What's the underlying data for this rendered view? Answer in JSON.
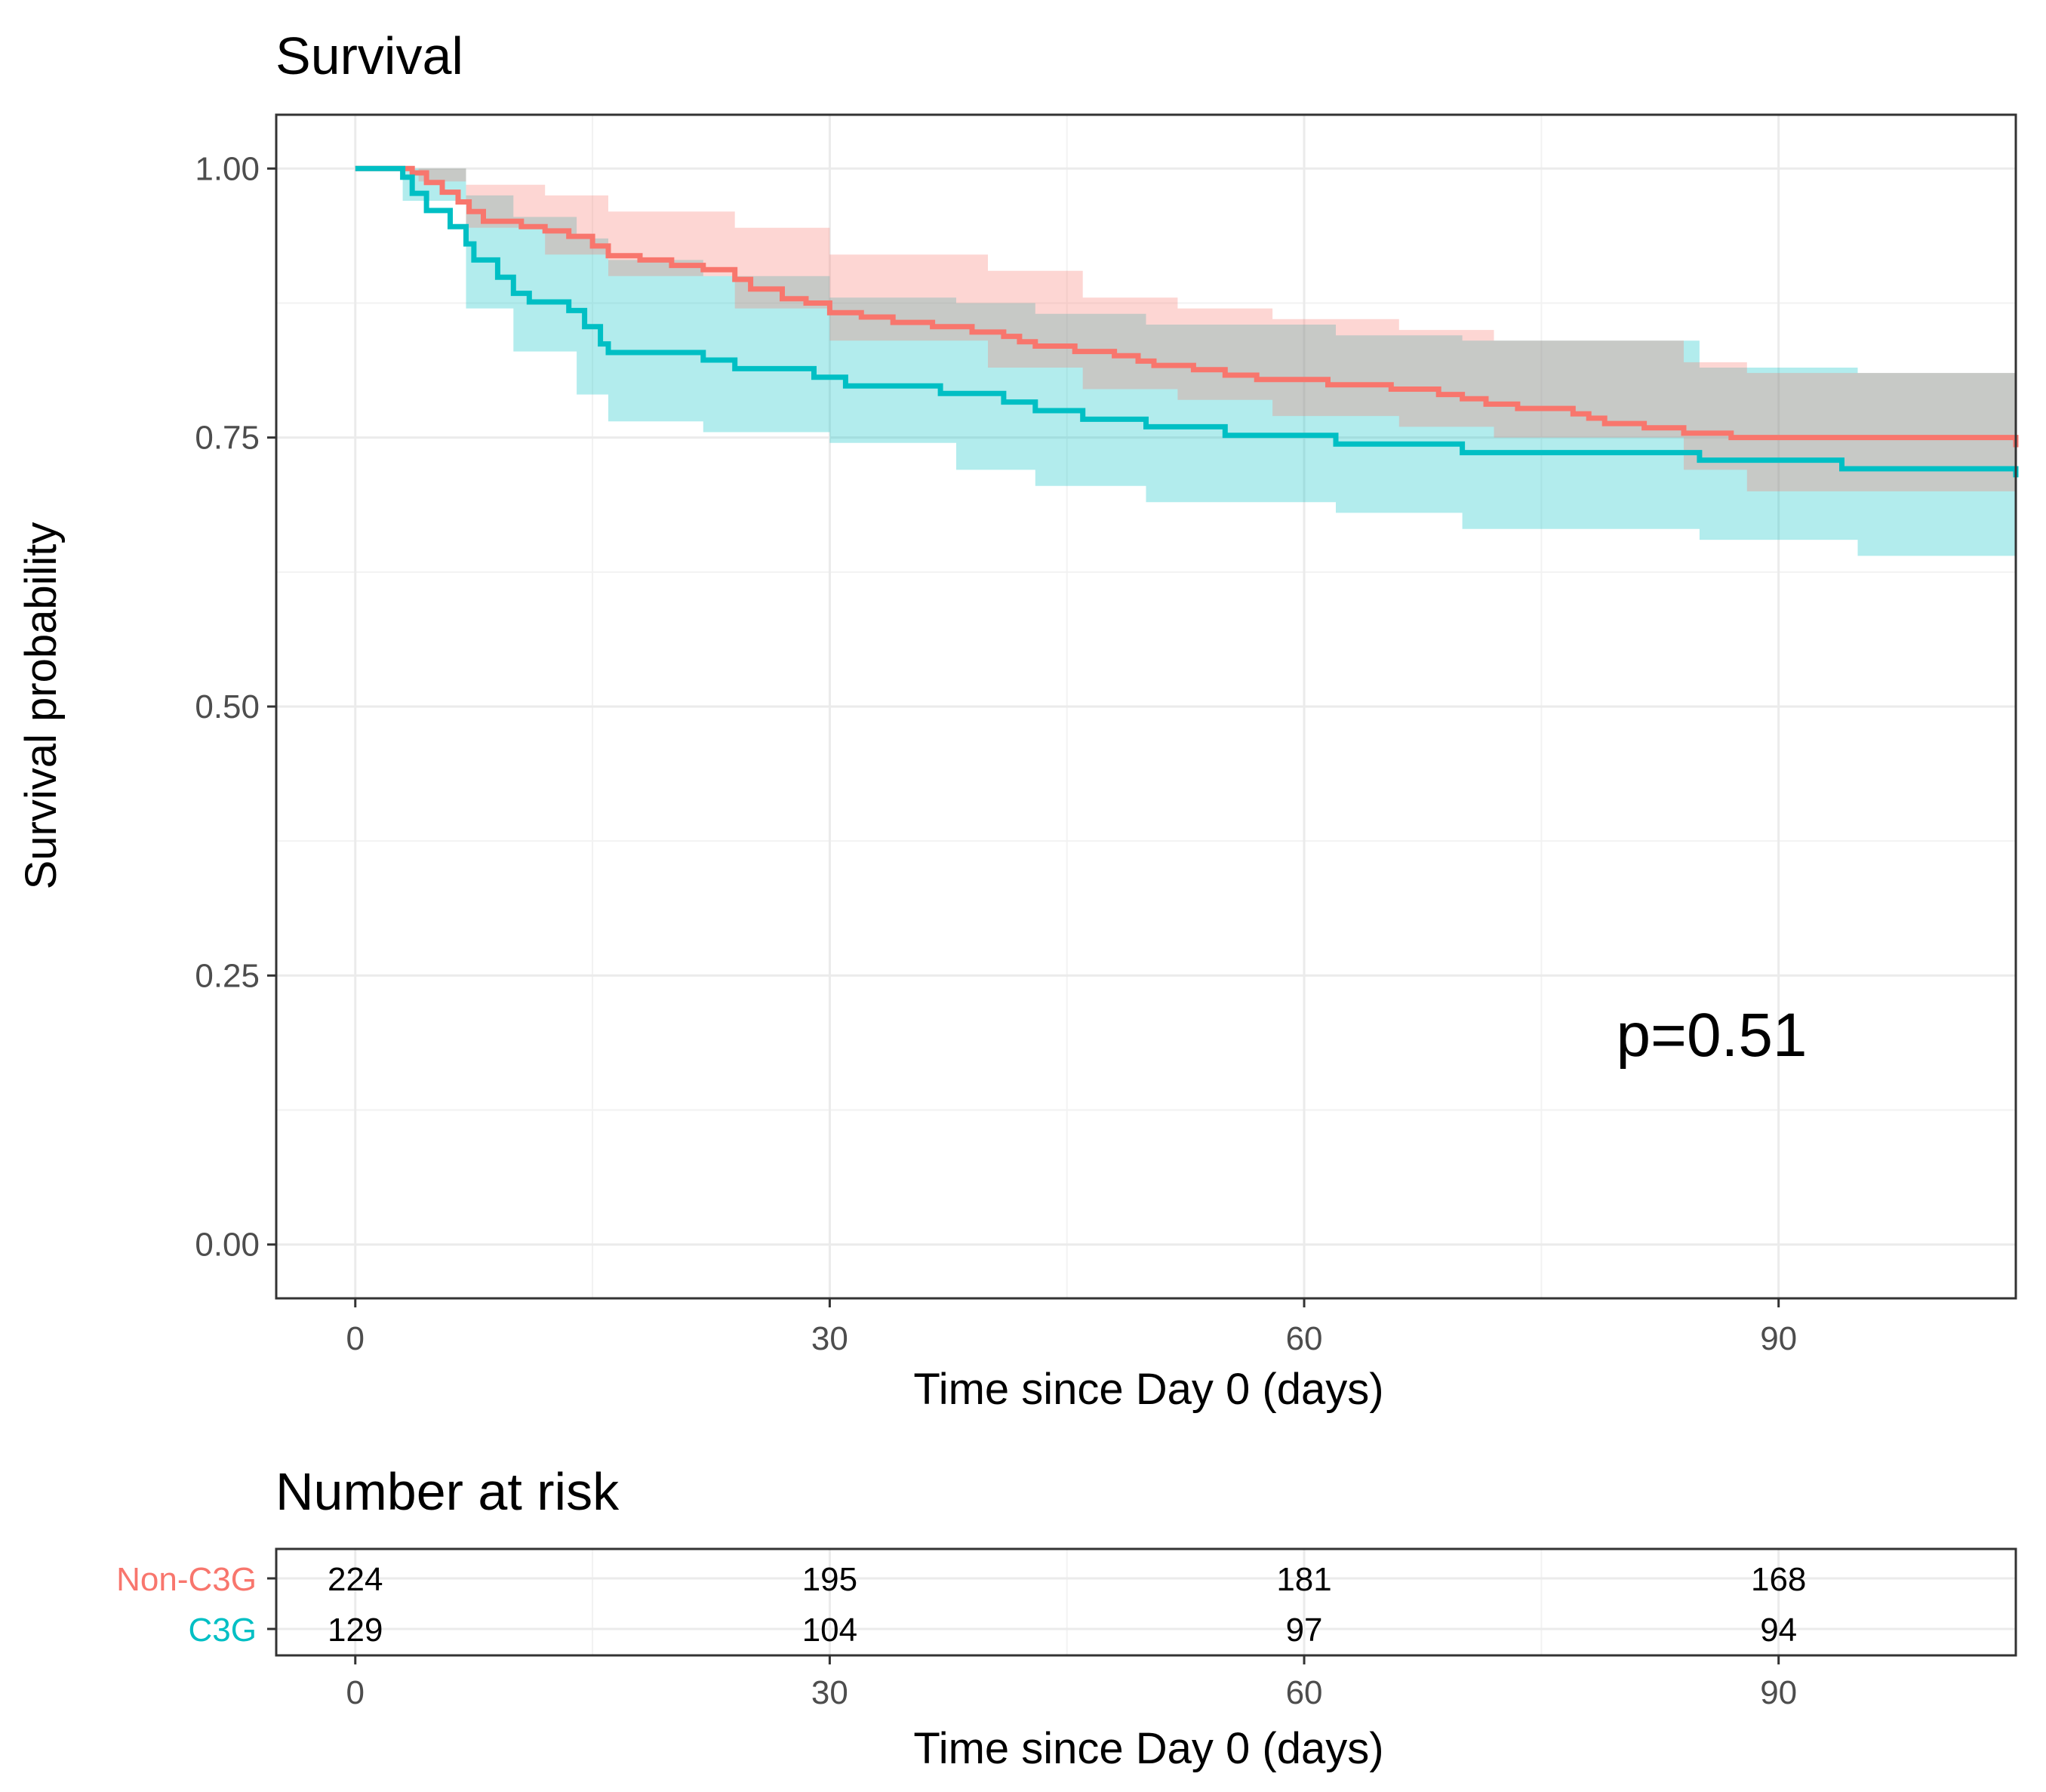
{
  "chart_data": [
    {
      "type": "line",
      "subtype": "kaplan-meier",
      "title": "Survival",
      "xlabel": "Time since Day 0 (days)",
      "ylabel": "Survival probability",
      "xlim": [
        -5,
        105
      ],
      "ylim": [
        -0.05,
        1.05
      ],
      "x_ticks": [
        0,
        30,
        60,
        90
      ],
      "x_tick_labels": [
        "0",
        "30",
        "60",
        "90"
      ],
      "y_ticks": [
        0,
        0.25,
        0.5,
        0.75,
        1.0
      ],
      "y_tick_labels": [
        "0.00",
        "0.25",
        "0.50",
        "0.75",
        "1.00"
      ],
      "grid": true,
      "annotation": "p=0.51",
      "series": [
        {
          "name": "Non-C3G",
          "color": "#F8766D",
          "band_color": "#F8766D",
          "steps": [
            [
              0,
              1.0
            ],
            [
              3.6,
              0.996
            ],
            [
              4.5,
              0.987
            ],
            [
              5.5,
              0.978
            ],
            [
              6.5,
              0.969
            ],
            [
              7.2,
              0.96
            ],
            [
              8.1,
              0.951
            ],
            [
              10.5,
              0.946
            ],
            [
              12.0,
              0.942
            ],
            [
              13.5,
              0.937
            ],
            [
              15.0,
              0.928
            ],
            [
              16.0,
              0.919
            ],
            [
              18.0,
              0.915
            ],
            [
              20.0,
              0.91
            ],
            [
              22.0,
              0.906
            ],
            [
              24.0,
              0.897
            ],
            [
              25.0,
              0.888
            ],
            [
              27.0,
              0.879
            ],
            [
              28.5,
              0.875
            ],
            [
              30.0,
              0.866
            ],
            [
              32.0,
              0.862
            ],
            [
              34.0,
              0.857
            ],
            [
              36.5,
              0.853
            ],
            [
              39.0,
              0.848
            ],
            [
              41.0,
              0.844
            ],
            [
              42.0,
              0.839
            ],
            [
              43.0,
              0.835
            ],
            [
              45.5,
              0.83
            ],
            [
              48.0,
              0.826
            ],
            [
              49.5,
              0.821
            ],
            [
              50.5,
              0.817
            ],
            [
              53.0,
              0.813
            ],
            [
              55.0,
              0.808
            ],
            [
              57.0,
              0.804
            ],
            [
              61.5,
              0.799
            ],
            [
              65.5,
              0.795
            ],
            [
              68.5,
              0.79
            ],
            [
              70.0,
              0.786
            ],
            [
              71.5,
              0.781
            ],
            [
              73.5,
              0.777
            ],
            [
              77.0,
              0.772
            ],
            [
              78.0,
              0.768
            ],
            [
              79.0,
              0.763
            ],
            [
              81.5,
              0.759
            ],
            [
              84.0,
              0.754
            ],
            [
              87.0,
              0.75
            ],
            [
              105,
              0.741
            ]
          ],
          "lower": [
            [
              0,
              1.0
            ],
            [
              4,
              0.988
            ],
            [
              7,
              0.945
            ],
            [
              12,
              0.92
            ],
            [
              16,
              0.9
            ],
            [
              24,
              0.87
            ],
            [
              30,
              0.84
            ],
            [
              40,
              0.815
            ],
            [
              46,
              0.795
            ],
            [
              52,
              0.785
            ],
            [
              58,
              0.77
            ],
            [
              66,
              0.76
            ],
            [
              72,
              0.75
            ],
            [
              84,
              0.72
            ],
            [
              88,
              0.7
            ],
            [
              105,
              0.685
            ]
          ],
          "upper": [
            [
              0,
              1.0
            ],
            [
              4,
              1.0
            ],
            [
              7,
              0.985
            ],
            [
              12,
              0.975
            ],
            [
              16,
              0.96
            ],
            [
              24,
              0.945
            ],
            [
              30,
              0.92
            ],
            [
              40,
              0.905
            ],
            [
              46,
              0.88
            ],
            [
              52,
              0.87
            ],
            [
              58,
              0.86
            ],
            [
              66,
              0.85
            ],
            [
              72,
              0.84
            ],
            [
              84,
              0.82
            ],
            [
              88,
              0.81
            ],
            [
              105,
              0.795
            ]
          ]
        },
        {
          "name": "C3G",
          "color": "#00BFC4",
          "band_color": "#00BFC4",
          "steps": [
            [
              0,
              1.0
            ],
            [
              3.0,
              0.992
            ],
            [
              3.6,
              0.977
            ],
            [
              4.5,
              0.961
            ],
            [
              6.0,
              0.946
            ],
            [
              7.0,
              0.93
            ],
            [
              7.5,
              0.915
            ],
            [
              9.0,
              0.899
            ],
            [
              10.0,
              0.884
            ],
            [
              11.0,
              0.876
            ],
            [
              13.5,
              0.868
            ],
            [
              14.5,
              0.853
            ],
            [
              15.5,
              0.837
            ],
            [
              16.0,
              0.829
            ],
            [
              22.0,
              0.822
            ],
            [
              24.0,
              0.814
            ],
            [
              29.0,
              0.806
            ],
            [
              31.0,
              0.798
            ],
            [
              37.0,
              0.791
            ],
            [
              41.0,
              0.783
            ],
            [
              43.0,
              0.775
            ],
            [
              46.0,
              0.767
            ],
            [
              50.0,
              0.76
            ],
            [
              55.0,
              0.752
            ],
            [
              62.0,
              0.744
            ],
            [
              70.0,
              0.736
            ],
            [
              85.0,
              0.729
            ],
            [
              94.0,
              0.721
            ],
            [
              105,
              0.713
            ]
          ],
          "lower": [
            [
              0,
              1.0
            ],
            [
              3,
              0.97
            ],
            [
              7,
              0.87
            ],
            [
              10,
              0.83
            ],
            [
              14,
              0.79
            ],
            [
              16,
              0.765
            ],
            [
              22,
              0.755
            ],
            [
              30,
              0.745
            ],
            [
              38,
              0.72
            ],
            [
              43,
              0.705
            ],
            [
              50,
              0.69
            ],
            [
              62,
              0.68
            ],
            [
              70,
              0.665
            ],
            [
              85,
              0.655
            ],
            [
              95,
              0.64
            ],
            [
              105,
              0.635
            ]
          ],
          "upper": [
            [
              0,
              1.0
            ],
            [
              3,
              1.0
            ],
            [
              7,
              0.975
            ],
            [
              10,
              0.955
            ],
            [
              14,
              0.935
            ],
            [
              16,
              0.915
            ],
            [
              22,
              0.9
            ],
            [
              30,
              0.88
            ],
            [
              38,
              0.875
            ],
            [
              43,
              0.865
            ],
            [
              50,
              0.855
            ],
            [
              62,
              0.845
            ],
            [
              70,
              0.84
            ],
            [
              85,
              0.815
            ],
            [
              95,
              0.81
            ],
            [
              105,
              0.8
            ]
          ]
        }
      ]
    },
    {
      "type": "table",
      "title": "Number at risk",
      "xlabel": "Time since Day 0 (days)",
      "x_ticks": [
        0,
        30,
        60,
        90
      ],
      "x_tick_labels": [
        "0",
        "30",
        "60",
        "90"
      ],
      "rows": [
        {
          "name": "Non-C3G",
          "color": "#F8766D",
          "values": [
            "224",
            "195",
            "181",
            "168"
          ]
        },
        {
          "name": "C3G",
          "color": "#00BFC4",
          "values": [
            "129",
            "104",
            "97",
            "94"
          ]
        }
      ]
    }
  ]
}
